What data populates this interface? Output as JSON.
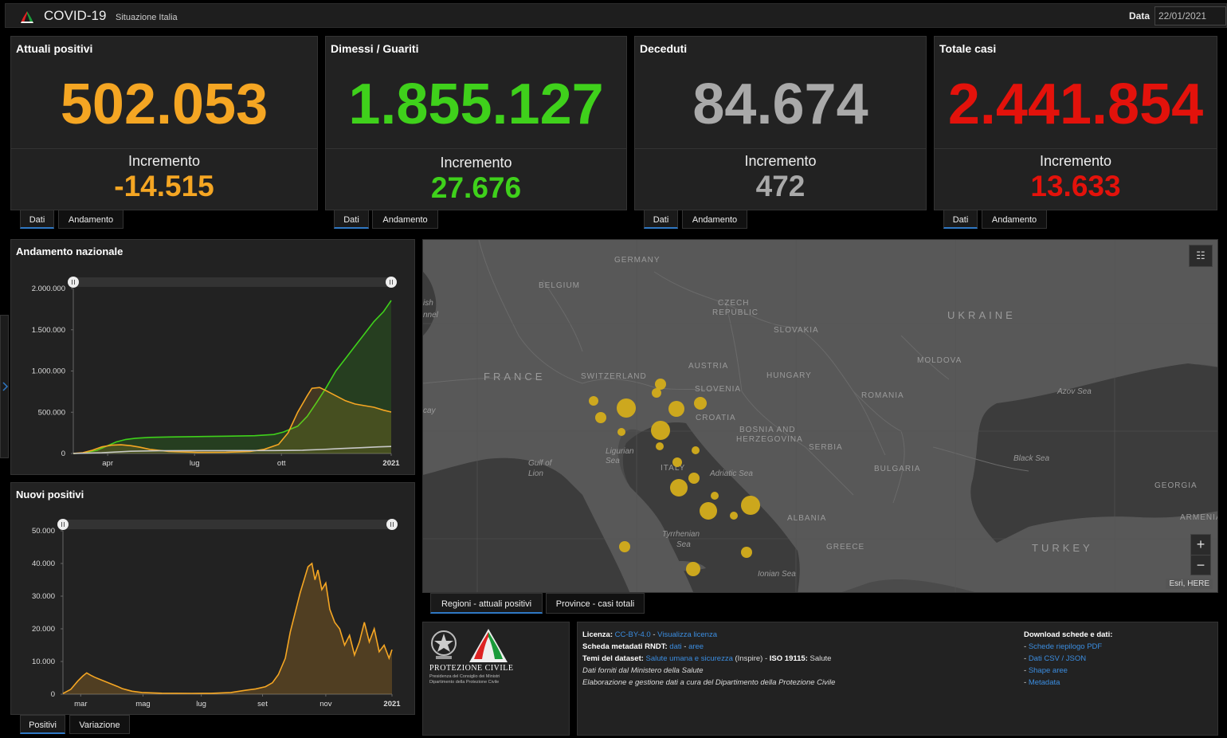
{
  "header": {
    "title": "COVID-19",
    "subtitle": "Situazione Italia",
    "date_label": "Data",
    "date_value": "22/01/2021"
  },
  "stats": [
    {
      "title": "Attuali positivi",
      "value": "502.053",
      "inc_label": "Incremento",
      "inc_value": "-14.515",
      "color": "#f5a623"
    },
    {
      "title": "Dimessi / Guariti",
      "value": "1.855.127",
      "inc_label": "Incremento",
      "inc_value": "27.676",
      "color": "#3fd11b"
    },
    {
      "title": "Deceduti",
      "value": "84.674",
      "inc_label": "Incremento",
      "inc_value": "472",
      "color": "#a9a9a9"
    },
    {
      "title": "Totale casi",
      "value": "2.441.854",
      "inc_label": "Incremento",
      "inc_value": "13.633",
      "color": "#e3120b"
    }
  ],
  "stat_tabs": {
    "tab1": "Dati",
    "tab2": "Andamento"
  },
  "chart_data": [
    {
      "type": "line",
      "title": "Andamento nazionale",
      "x_ticks": [
        "apr",
        "lug",
        "ott",
        "2021"
      ],
      "y_ticks": [
        "2.000.000",
        "1.500.000",
        "1.000.000",
        "500.000",
        "0"
      ],
      "ylim": [
        0,
        2000000
      ],
      "x_range": [
        "2020-02-24",
        "2021-01-22"
      ],
      "series": [
        {
          "color": "#3fd11b",
          "points": [
            [
              0,
              0
            ],
            [
              10,
              5000
            ],
            [
              25,
              40000
            ],
            [
              35,
              90000
            ],
            [
              45,
              140000
            ],
            [
              55,
              170000
            ],
            [
              65,
              185000
            ],
            [
              80,
              195000
            ],
            [
              100,
              200000
            ],
            [
              130,
              205000
            ],
            [
              160,
              210000
            ],
            [
              190,
              215000
            ],
            [
              210,
              230000
            ],
            [
              220,
              260000
            ],
            [
              235,
              330000
            ],
            [
              245,
              450000
            ],
            [
              255,
              620000
            ],
            [
              265,
              800000
            ],
            [
              275,
              1000000
            ],
            [
              285,
              1150000
            ],
            [
              295,
              1300000
            ],
            [
              305,
              1450000
            ],
            [
              315,
              1600000
            ],
            [
              325,
              1720000
            ],
            [
              333,
              1855127
            ]
          ]
        },
        {
          "color": "#f5a623",
          "points": [
            [
              0,
              500
            ],
            [
              10,
              10000
            ],
            [
              20,
              40000
            ],
            [
              30,
              80000
            ],
            [
              40,
              100000
            ],
            [
              50,
              105000
            ],
            [
              60,
              95000
            ],
            [
              70,
              75000
            ],
            [
              80,
              50000
            ],
            [
              100,
              25000
            ],
            [
              130,
              14000
            ],
            [
              160,
              15000
            ],
            [
              185,
              25000
            ],
            [
              200,
              50000
            ],
            [
              215,
              110000
            ],
            [
              225,
              250000
            ],
            [
              235,
              500000
            ],
            [
              245,
              700000
            ],
            [
              250,
              790000
            ],
            [
              258,
              800000
            ],
            [
              265,
              760000
            ],
            [
              275,
              700000
            ],
            [
              285,
              640000
            ],
            [
              295,
              600000
            ],
            [
              305,
              580000
            ],
            [
              315,
              560000
            ],
            [
              325,
              525000
            ],
            [
              333,
              502053
            ]
          ]
        },
        {
          "color": "#c8c8c8",
          "points": [
            [
              0,
              0
            ],
            [
              30,
              10000
            ],
            [
              60,
              27000
            ],
            [
              90,
              33000
            ],
            [
              150,
              35000
            ],
            [
              210,
              36000
            ],
            [
              240,
              40000
            ],
            [
              260,
              48000
            ],
            [
              280,
              60000
            ],
            [
              300,
              70000
            ],
            [
              320,
              80000
            ],
            [
              333,
              84674
            ]
          ]
        }
      ]
    },
    {
      "type": "area",
      "title": "Nuovi positivi",
      "x_ticks": [
        "mar",
        "mag",
        "lug",
        "set",
        "nov",
        "2021"
      ],
      "y_ticks": [
        "50.000",
        "40.000",
        "30.000",
        "20.000",
        "10.000",
        "0"
      ],
      "ylim": [
        0,
        50000
      ],
      "color": "#f5a623",
      "points": [
        [
          0,
          200
        ],
        [
          8,
          1500
        ],
        [
          15,
          4000
        ],
        [
          20,
          5500
        ],
        [
          24,
          6500
        ],
        [
          28,
          5800
        ],
        [
          32,
          5200
        ],
        [
          36,
          4700
        ],
        [
          40,
          4200
        ],
        [
          45,
          3600
        ],
        [
          50,
          3000
        ],
        [
          55,
          2400
        ],
        [
          60,
          1700
        ],
        [
          65,
          1300
        ],
        [
          70,
          900
        ],
        [
          80,
          500
        ],
        [
          100,
          300
        ],
        [
          130,
          250
        ],
        [
          150,
          280
        ],
        [
          170,
          500
        ],
        [
          185,
          1200
        ],
        [
          195,
          1600
        ],
        [
          205,
          2300
        ],
        [
          212,
          3500
        ],
        [
          218,
          6000
        ],
        [
          225,
          11000
        ],
        [
          230,
          19000
        ],
        [
          235,
          25000
        ],
        [
          240,
          31000
        ],
        [
          245,
          36000
        ],
        [
          248,
          39000
        ],
        [
          252,
          40000
        ],
        [
          255,
          35000
        ],
        [
          258,
          38000
        ],
        [
          262,
          32000
        ],
        [
          266,
          34000
        ],
        [
          270,
          26000
        ],
        [
          275,
          22000
        ],
        [
          280,
          20000
        ],
        [
          285,
          15000
        ],
        [
          290,
          18000
        ],
        [
          295,
          12000
        ],
        [
          300,
          16000
        ],
        [
          305,
          22000
        ],
        [
          310,
          16000
        ],
        [
          315,
          20000
        ],
        [
          320,
          13000
        ],
        [
          325,
          15000
        ],
        [
          330,
          11000
        ],
        [
          333,
          13633
        ]
      ]
    }
  ],
  "chart_tabs": {
    "tab1": "Positivi",
    "tab2": "Variazione"
  },
  "map": {
    "labels": {
      "germany": "GERMANY",
      "belgium": "BELGIUM",
      "czech1": "CZECH",
      "czech2": "REPUBLIC",
      "slovakia": "SLOVAKIA",
      "ukraine": "UKRAINE",
      "france": "FRANCE",
      "switzerland": "SWITZERLAND",
      "austria": "AUSTRIA",
      "hungary": "HUNGARY",
      "moldova": "MOLDOVA",
      "slovenia": "SLOVENIA",
      "croatia": "CROATIA",
      "romania": "ROMANIA",
      "bosnia1": "BOSNIA AND",
      "bosnia2": "HERZEGOVINA",
      "serbia": "SERBIA",
      "bulgaria": "BULGARIA",
      "italy": "ITALY",
      "albania": "ALBANIA",
      "greece": "GREECE",
      "turkey": "TURKEY",
      "georgia": "GEORGIA",
      "armenia": "ARMENIA",
      "azov": "Azov Sea",
      "blacksea": "Black Sea",
      "ligurian1": "Ligurian",
      "ligurian2": "Sea",
      "lion1": "Gulf of",
      "lion2": "Lion",
      "adriatic": "Adriatic Sea",
      "tyrrhenian1": "Tyrrhenian",
      "tyrrhenian2": "Sea",
      "ionian": "Ionian Sea",
      "english1": "ish",
      "english2": "nnel",
      "biscay": "cay"
    },
    "attribution": "Esri, HERE",
    "zoom_in": "+",
    "zoom_out": "−",
    "list_icon": "☷",
    "tab1": "Regioni - attuali positivi",
    "tab2": "Province - casi totali"
  },
  "logo": {
    "name": "PROTEZIONE CIVILE",
    "line1": "Presidenza del Consiglio dei Ministri",
    "line2": "Dipartimento della Protezione Civile"
  },
  "info": {
    "l1_label": "Licenza:",
    "l1_link1": "CC-BY-4.0",
    "l1_sep": " - ",
    "l1_link2": "Visualizza licenza",
    "l2_label": "Scheda metadati RNDT:",
    "l2_link1": "dati",
    "l2_sep": " - ",
    "l2_link2": "aree",
    "l3_label": "Temi del dataset:",
    "l3_link": "Salute umana e sicurezza",
    "l3_text1": " (Inspire) - ",
    "l3_bold": "ISO 19115:",
    "l3_text2": " Salute",
    "l4": "Dati forniti dal Ministero della Salute",
    "l5": "Elaborazione e gestione dati a cura del Dipartimento della Protezione Civile"
  },
  "download": {
    "title": "Download schede e dati:",
    "items": [
      {
        "dash": "- ",
        "label": "Schede riepilogo PDF"
      },
      {
        "dash": "- ",
        "label": "Dati CSV / JSON"
      },
      {
        "dash": "- ",
        "label": "Shape aree"
      },
      {
        "dash": "- ",
        "label": "Metadata"
      }
    ]
  }
}
